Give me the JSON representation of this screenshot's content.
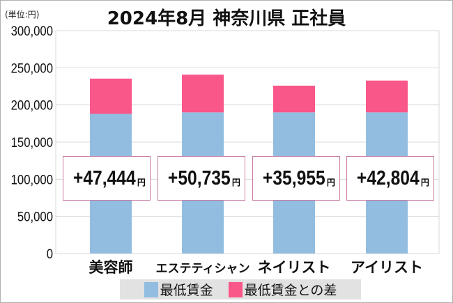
{
  "chart_data": {
    "type": "bar",
    "stacked": true,
    "title": "2024年8月 神奈川県 正社員",
    "unit_label": "(単位:円)",
    "categories": [
      "美容師",
      "エステティシャン",
      "ネイリスト",
      "アイリスト"
    ],
    "series": [
      {
        "name": "最低賃金",
        "values": [
          188000,
          190000,
          190000,
          190000
        ],
        "color": "#92bde0"
      },
      {
        "name": "最低賃金との差",
        "values": [
          47444,
          50735,
          35955,
          42804
        ],
        "color": "#f9568a"
      }
    ],
    "data_labels": [
      "+47,444",
      "+50,735",
      "+35,955",
      "+42,804"
    ],
    "data_label_unit": "円",
    "ylim": [
      0,
      300000
    ],
    "yticks": [
      0,
      50000,
      100000,
      150000,
      200000,
      250000,
      300000
    ],
    "ytick_labels": [
      "0",
      "50,000",
      "100,000",
      "150,000",
      "200,000",
      "250,000",
      "300,000"
    ],
    "grid": true,
    "legend_position": "bottom"
  }
}
